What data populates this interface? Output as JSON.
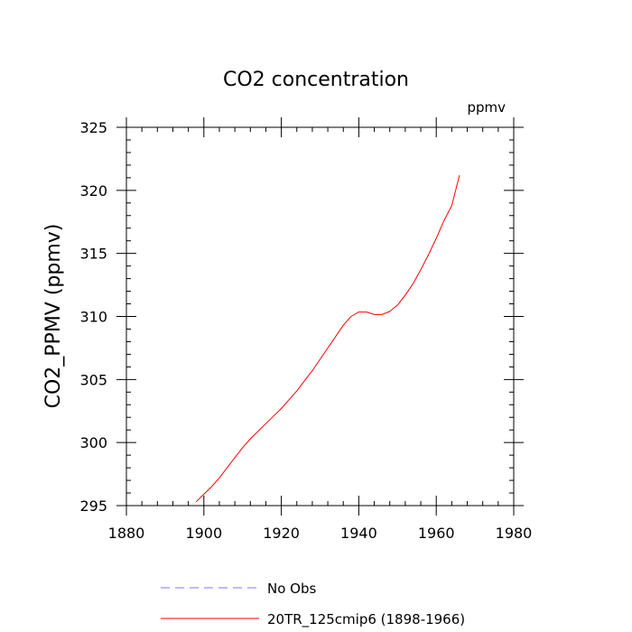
{
  "chart_data": {
    "type": "line",
    "title": "CO2 concentration",
    "units_label": "ppmv",
    "xlabel": "",
    "ylabel": "CO2_PPMV  (ppmv)",
    "xlim": [
      1880,
      1980
    ],
    "ylim": [
      295,
      325
    ],
    "x_ticks": [
      1880,
      1900,
      1920,
      1940,
      1960,
      1980
    ],
    "y_ticks": [
      295,
      300,
      305,
      310,
      315,
      320,
      325
    ],
    "x_minor_step": 4,
    "y_minor_step": 1,
    "grid": false,
    "legend_position": "bottom",
    "series": [
      {
        "name": "No Obs",
        "color": "#7777ee",
        "dash": "dashed",
        "x": [],
        "y": []
      },
      {
        "name": "20TR_125cmip6 (1898-1966)",
        "color": "#ff0000",
        "dash": "solid",
        "x": [
          1898,
          1900,
          1902,
          1904,
          1906,
          1908,
          1910,
          1912,
          1914,
          1916,
          1918,
          1920,
          1922,
          1924,
          1926,
          1928,
          1930,
          1932,
          1934,
          1936,
          1938,
          1940,
          1942,
          1944,
          1946,
          1948,
          1950,
          1952,
          1954,
          1956,
          1958,
          1960,
          1962,
          1964,
          1966
        ],
        "y": [
          295.3,
          295.9,
          296.5,
          297.2,
          298.0,
          298.8,
          299.6,
          300.3,
          300.9,
          301.5,
          302.1,
          302.7,
          303.4,
          304.1,
          304.9,
          305.7,
          306.6,
          307.5,
          308.4,
          309.3,
          310.0,
          310.35,
          310.35,
          310.15,
          310.15,
          310.4,
          310.9,
          311.7,
          312.6,
          313.7,
          314.9,
          316.2,
          317.6,
          318.8,
          321.2
        ]
      }
    ]
  }
}
